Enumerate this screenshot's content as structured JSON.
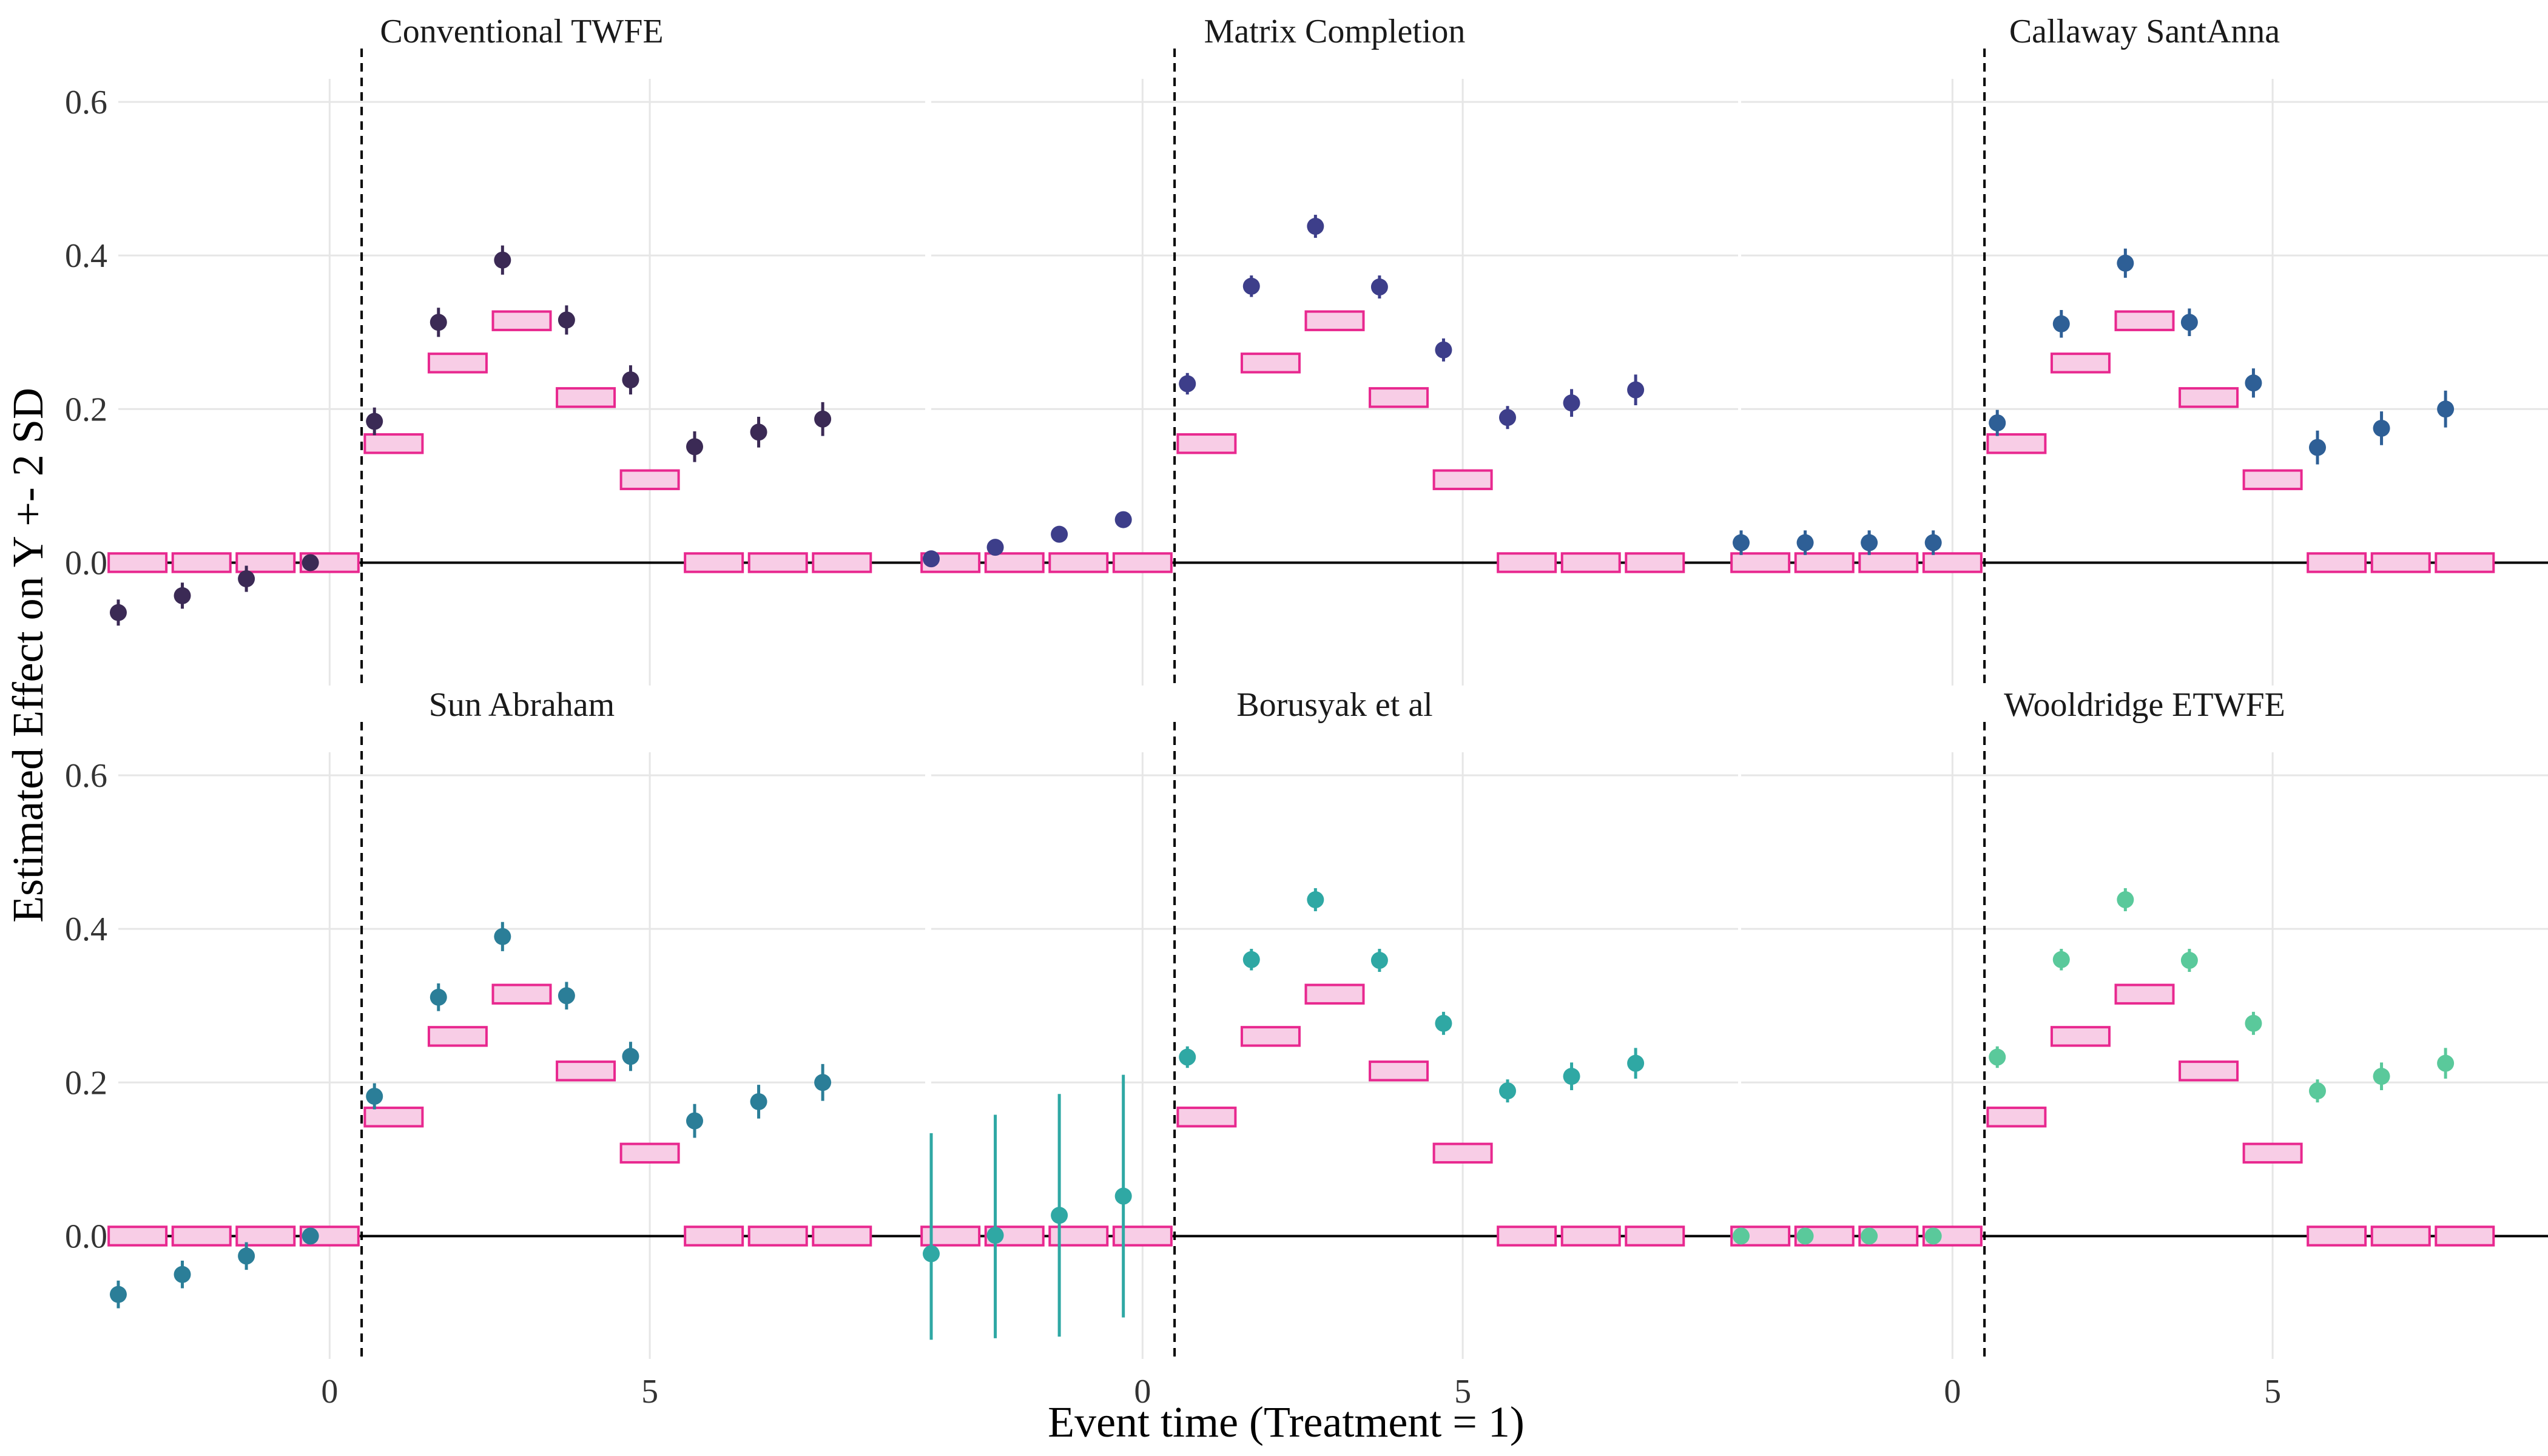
{
  "chart_data": {
    "type": "scatter",
    "xlabel": "Event time (Treatment = 1)",
    "ylabel": "Estimated Effect on Y +- 2 SD",
    "xlim": [
      -3.3,
      9.3
    ],
    "ylim": [
      -0.16,
      0.63
    ],
    "x_ticks": [
      0,
      5
    ],
    "x_tick_labels": [
      "0",
      "5"
    ],
    "y_ticks": [
      0.0,
      0.2,
      0.4,
      0.6
    ],
    "y_tick_labels": [
      "0.0",
      "0.2",
      "0.4",
      "0.6"
    ],
    "treatment_line_x": 0.5,
    "reference_line_y": 0,
    "true_effects": {
      "x": [
        -3,
        -2,
        -1,
        0,
        1,
        2,
        3,
        4,
        5,
        6,
        7,
        8
      ],
      "y": [
        0,
        0,
        0,
        0,
        0.155,
        0.26,
        0.315,
        0.215,
        0.108,
        0,
        0,
        0
      ],
      "box_height": 0.02,
      "fill": "#f8cde6",
      "stroke": "#e8288f"
    },
    "panels": [
      {
        "title": "Conventional TWFE",
        "color": "#3b2a55",
        "points": [
          {
            "x": -3,
            "y": -0.065,
            "lo": -0.082,
            "hi": -0.048
          },
          {
            "x": -2,
            "y": -0.043,
            "lo": -0.06,
            "hi": -0.026
          },
          {
            "x": -1,
            "y": -0.021,
            "lo": -0.038,
            "hi": -0.004
          },
          {
            "x": 0,
            "y": 0.0,
            "lo": -0.006,
            "hi": 0.006
          },
          {
            "x": 1,
            "y": 0.184,
            "lo": 0.166,
            "hi": 0.202
          },
          {
            "x": 2,
            "y": 0.313,
            "lo": 0.294,
            "hi": 0.332
          },
          {
            "x": 3,
            "y": 0.394,
            "lo": 0.375,
            "hi": 0.413
          },
          {
            "x": 4,
            "y": 0.316,
            "lo": 0.297,
            "hi": 0.335
          },
          {
            "x": 5,
            "y": 0.238,
            "lo": 0.219,
            "hi": 0.257
          },
          {
            "x": 6,
            "y": 0.151,
            "lo": 0.131,
            "hi": 0.171
          },
          {
            "x": 7,
            "y": 0.17,
            "lo": 0.15,
            "hi": 0.19
          },
          {
            "x": 8,
            "y": 0.187,
            "lo": 0.165,
            "hi": 0.209
          }
        ]
      },
      {
        "title": "Matrix Completion",
        "color": "#3d3e8a",
        "points": [
          {
            "x": -3,
            "y": 0.005,
            "lo": -0.001,
            "hi": 0.011
          },
          {
            "x": -2,
            "y": 0.02,
            "lo": 0.014,
            "hi": 0.026
          },
          {
            "x": -1,
            "y": 0.037,
            "lo": 0.031,
            "hi": 0.043
          },
          {
            "x": 0,
            "y": 0.056,
            "lo": 0.05,
            "hi": 0.062
          },
          {
            "x": 1,
            "y": 0.233,
            "lo": 0.219,
            "hi": 0.247
          },
          {
            "x": 2,
            "y": 0.36,
            "lo": 0.346,
            "hi": 0.374
          },
          {
            "x": 3,
            "y": 0.438,
            "lo": 0.423,
            "hi": 0.453
          },
          {
            "x": 4,
            "y": 0.359,
            "lo": 0.344,
            "hi": 0.374
          },
          {
            "x": 5,
            "y": 0.277,
            "lo": 0.262,
            "hi": 0.292
          },
          {
            "x": 6,
            "y": 0.189,
            "lo": 0.174,
            "hi": 0.204
          },
          {
            "x": 7,
            "y": 0.208,
            "lo": 0.19,
            "hi": 0.226
          },
          {
            "x": 8,
            "y": 0.225,
            "lo": 0.205,
            "hi": 0.245
          }
        ]
      },
      {
        "title": "Callaway SantAnna",
        "color": "#2e5f96",
        "points": [
          {
            "x": -3,
            "y": 0.026,
            "lo": 0.01,
            "hi": 0.042
          },
          {
            "x": -2,
            "y": 0.026,
            "lo": 0.01,
            "hi": 0.042
          },
          {
            "x": -1,
            "y": 0.026,
            "lo": 0.01,
            "hi": 0.042
          },
          {
            "x": 0,
            "y": 0.026,
            "lo": 0.01,
            "hi": 0.042
          },
          {
            "x": 1,
            "y": 0.182,
            "lo": 0.165,
            "hi": 0.199
          },
          {
            "x": 2,
            "y": 0.311,
            "lo": 0.293,
            "hi": 0.329
          },
          {
            "x": 3,
            "y": 0.39,
            "lo": 0.371,
            "hi": 0.409
          },
          {
            "x": 4,
            "y": 0.313,
            "lo": 0.295,
            "hi": 0.331
          },
          {
            "x": 5,
            "y": 0.234,
            "lo": 0.215,
            "hi": 0.253
          },
          {
            "x": 6,
            "y": 0.15,
            "lo": 0.128,
            "hi": 0.172
          },
          {
            "x": 7,
            "y": 0.175,
            "lo": 0.153,
            "hi": 0.197
          },
          {
            "x": 8,
            "y": 0.2,
            "lo": 0.176,
            "hi": 0.224
          }
        ]
      },
      {
        "title": "Sun Abraham",
        "color": "#2b7e98",
        "points": [
          {
            "x": -3,
            "y": -0.076,
            "lo": -0.094,
            "hi": -0.058
          },
          {
            "x": -2,
            "y": -0.05,
            "lo": -0.068,
            "hi": -0.032
          },
          {
            "x": -1,
            "y": -0.026,
            "lo": -0.044,
            "hi": -0.008
          },
          {
            "x": 0,
            "y": 0.0,
            "lo": -0.006,
            "hi": 0.006
          },
          {
            "x": 1,
            "y": 0.182,
            "lo": 0.165,
            "hi": 0.199
          },
          {
            "x": 2,
            "y": 0.311,
            "lo": 0.293,
            "hi": 0.329
          },
          {
            "x": 3,
            "y": 0.39,
            "lo": 0.371,
            "hi": 0.409
          },
          {
            "x": 4,
            "y": 0.313,
            "lo": 0.295,
            "hi": 0.331
          },
          {
            "x": 5,
            "y": 0.234,
            "lo": 0.215,
            "hi": 0.253
          },
          {
            "x": 6,
            "y": 0.15,
            "lo": 0.128,
            "hi": 0.172
          },
          {
            "x": 7,
            "y": 0.175,
            "lo": 0.153,
            "hi": 0.197
          },
          {
            "x": 8,
            "y": 0.2,
            "lo": 0.176,
            "hi": 0.224
          }
        ]
      },
      {
        "title": "Borusyak et al",
        "color": "#2fa8a4",
        "points": [
          {
            "x": -3,
            "y": -0.023,
            "lo": -0.135,
            "hi": 0.134
          },
          {
            "x": -2,
            "y": 0.001,
            "lo": -0.133,
            "hi": 0.158
          },
          {
            "x": -1,
            "y": 0.027,
            "lo": -0.131,
            "hi": 0.185
          },
          {
            "x": 0,
            "y": 0.052,
            "lo": -0.106,
            "hi": 0.21
          },
          {
            "x": 1,
            "y": 0.233,
            "lo": 0.219,
            "hi": 0.247
          },
          {
            "x": 2,
            "y": 0.36,
            "lo": 0.346,
            "hi": 0.374
          },
          {
            "x": 3,
            "y": 0.438,
            "lo": 0.423,
            "hi": 0.453
          },
          {
            "x": 4,
            "y": 0.359,
            "lo": 0.344,
            "hi": 0.374
          },
          {
            "x": 5,
            "y": 0.277,
            "lo": 0.262,
            "hi": 0.292
          },
          {
            "x": 6,
            "y": 0.189,
            "lo": 0.174,
            "hi": 0.204
          },
          {
            "x": 7,
            "y": 0.208,
            "lo": 0.19,
            "hi": 0.226
          },
          {
            "x": 8,
            "y": 0.225,
            "lo": 0.205,
            "hi": 0.245
          }
        ]
      },
      {
        "title": "Wooldridge ETWFE",
        "color": "#5ac99b",
        "points": [
          {
            "x": -3,
            "y": 0.0,
            "lo": -0.006,
            "hi": 0.006
          },
          {
            "x": -2,
            "y": 0.0,
            "lo": -0.006,
            "hi": 0.006
          },
          {
            "x": -1,
            "y": 0.0,
            "lo": -0.006,
            "hi": 0.006
          },
          {
            "x": 0,
            "y": 0.0,
            "lo": -0.006,
            "hi": 0.006
          },
          {
            "x": 1,
            "y": 0.233,
            "lo": 0.219,
            "hi": 0.247
          },
          {
            "x": 2,
            "y": 0.36,
            "lo": 0.346,
            "hi": 0.374
          },
          {
            "x": 3,
            "y": 0.438,
            "lo": 0.423,
            "hi": 0.453
          },
          {
            "x": 4,
            "y": 0.359,
            "lo": 0.344,
            "hi": 0.374
          },
          {
            "x": 5,
            "y": 0.277,
            "lo": 0.262,
            "hi": 0.292
          },
          {
            "x": 6,
            "y": 0.189,
            "lo": 0.174,
            "hi": 0.204
          },
          {
            "x": 7,
            "y": 0.208,
            "lo": 0.19,
            "hi": 0.226
          },
          {
            "x": 8,
            "y": 0.225,
            "lo": 0.205,
            "hi": 0.245
          }
        ]
      }
    ]
  }
}
